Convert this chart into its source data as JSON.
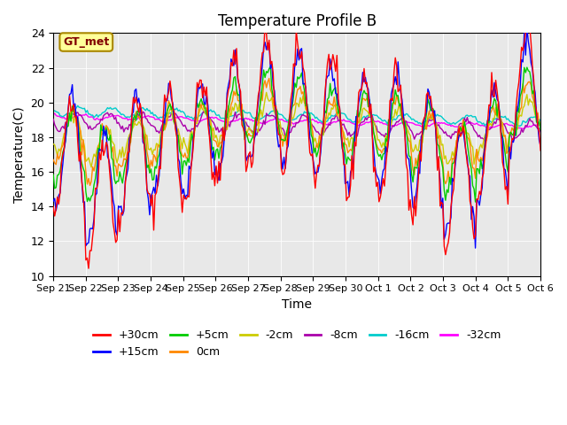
{
  "title": "Temperature Profile B",
  "xlabel": "Time",
  "ylabel": "Temperature(C)",
  "ylim": [
    10,
    24
  ],
  "background_color": "#e8e8e8",
  "fig_background": "#ffffff",
  "annotation": "GT_met",
  "series_order": [
    "+30cm",
    "+15cm",
    "+5cm",
    "0cm",
    "-2cm",
    "-8cm",
    "-16cm",
    "-32cm"
  ],
  "series_colors": [
    "#ff0000",
    "#0000ff",
    "#00cc00",
    "#ff8800",
    "#cccc00",
    "#aa00aa",
    "#00cccc",
    "#ff00ff"
  ],
  "series_zorders": [
    8,
    7,
    6,
    5,
    4,
    3,
    2,
    1
  ],
  "xtick_labels": [
    "Sep 21",
    "Sep 22",
    "Sep 23",
    "Sep 24",
    "Sep 25",
    "Sep 26",
    "Sep 27",
    "Sep 28",
    "Sep 29",
    "Sep 30",
    "Oct 1",
    "Oct 2",
    "Oct 3",
    "Oct 4",
    "Oct 5",
    "Oct 6"
  ],
  "ytick_labels": [
    10,
    12,
    14,
    16,
    18,
    20,
    22,
    24
  ],
  "legend_ncol": 6,
  "legend_fontsize": 9
}
